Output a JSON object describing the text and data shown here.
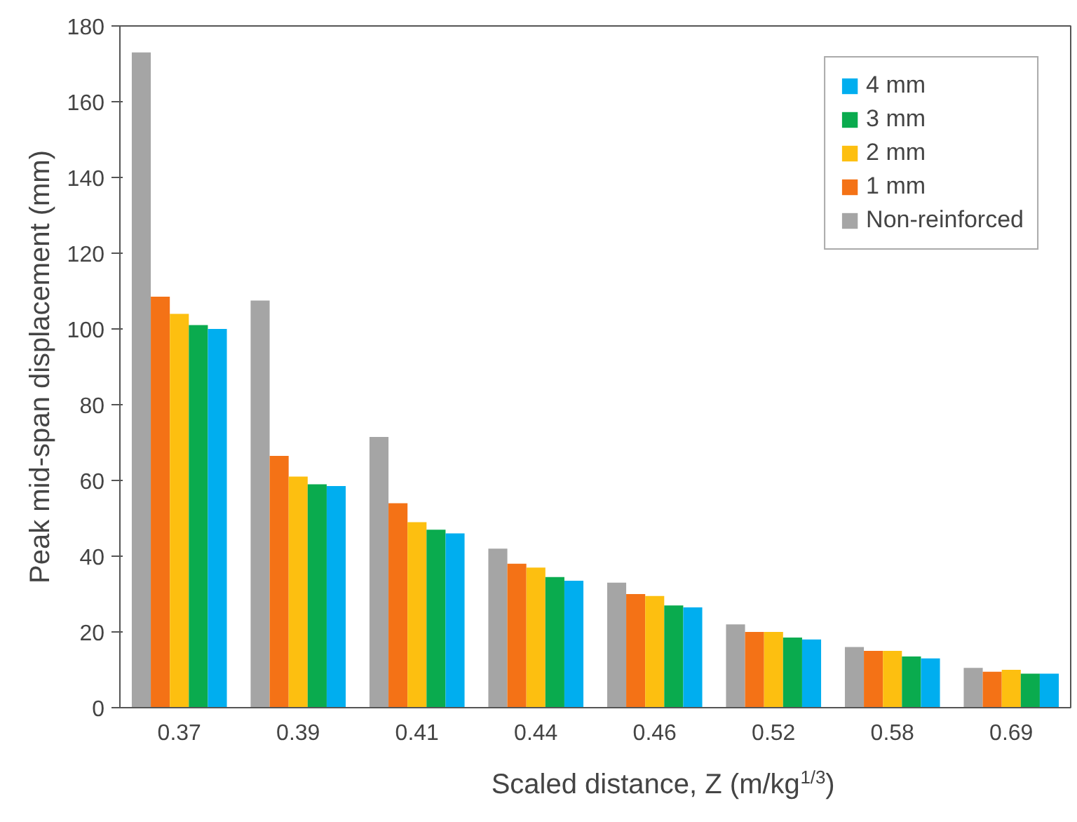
{
  "chart_data": {
    "type": "bar",
    "xlabel": "Scaled distance, Z (m/kg$^{1/3}$)",
    "ylabel": "Peak mid-span displacement (mm)",
    "categories": [
      "0.37",
      "0.39",
      "0.41",
      "0.44",
      "0.46",
      "0.52",
      "0.58",
      "0.69"
    ],
    "series": [
      {
        "name": "Non-reinforced",
        "color": "#a5a5a5",
        "values": [
          173,
          107.5,
          71.5,
          42,
          33,
          22,
          16,
          10.5
        ]
      },
      {
        "name": "1 mm",
        "color": "#f47216",
        "values": [
          108.5,
          66.5,
          54,
          38,
          30,
          20,
          15,
          9.5
        ]
      },
      {
        "name": "2 mm",
        "color": "#fdbf10",
        "values": [
          104,
          61,
          49,
          37,
          29.5,
          20,
          15,
          10
        ]
      },
      {
        "name": "3 mm",
        "color": "#0aab4e",
        "values": [
          101,
          59,
          47,
          34.5,
          27,
          18.5,
          13.5,
          9
        ]
      },
      {
        "name": "4 mm",
        "color": "#00aeef",
        "values": [
          100,
          58.5,
          46,
          33.5,
          26.5,
          18,
          13,
          9
        ]
      }
    ],
    "ylim": [
      0,
      180
    ],
    "yticks": [
      0,
      20,
      40,
      60,
      80,
      100,
      120,
      140,
      160,
      180
    ],
    "grid": false,
    "legend": "top right"
  }
}
